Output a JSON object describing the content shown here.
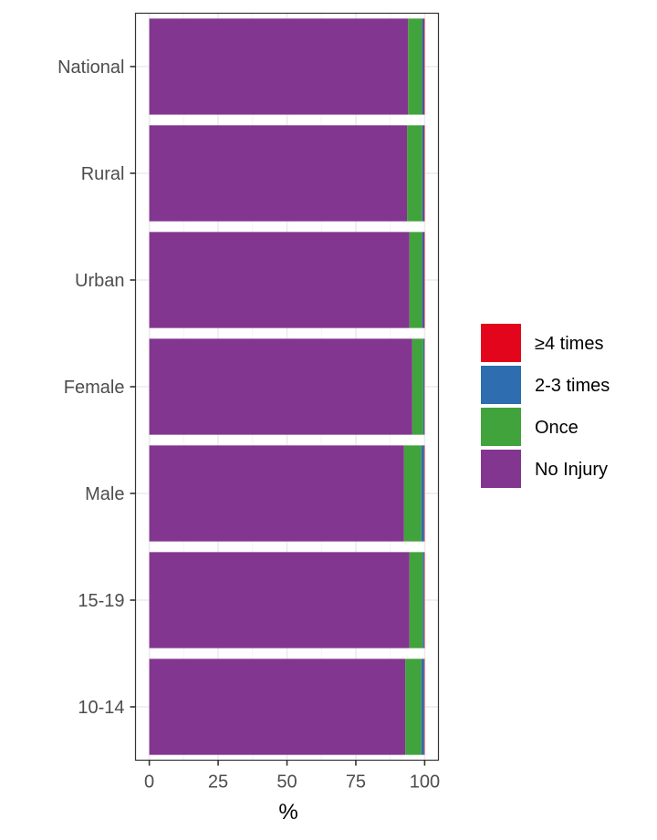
{
  "chart_data": {
    "type": "bar",
    "orientation": "horizontal",
    "stacked": true,
    "categories": [
      "National",
      "Rural",
      "Urban",
      "Female",
      "Male",
      "15-19",
      "10-14"
    ],
    "xlabel": "%",
    "ylabel": "",
    "xlim": [
      0,
      100
    ],
    "xticks": [
      0,
      25,
      50,
      75,
      100
    ],
    "grid": true,
    "legend_position": "right",
    "series": [
      {
        "name": "No Injury",
        "color": "#83368F",
        "values": [
          94,
          93.6,
          94.5,
          95.5,
          92.5,
          94.5,
          93
        ]
      },
      {
        "name": "Once",
        "color": "#41A33B",
        "values": [
          5.0,
          5.5,
          4.5,
          4.0,
          6.3,
          4.8,
          5.8
        ]
      },
      {
        "name": "2-3 times",
        "color": "#2E6DAF",
        "values": [
          0.7,
          0.6,
          0.7,
          0.4,
          1.0,
          0.5,
          1.0
        ]
      },
      {
        "name": "≥4 times",
        "color": "#E3051B",
        "values": [
          0.3,
          0.3,
          0.3,
          0.1,
          0.2,
          0.2,
          0.2
        ]
      }
    ],
    "legend_order": [
      "≥4 times",
      "2-3 times",
      "Once",
      "No Injury"
    ]
  },
  "colors": {
    "panel_border": "#333333",
    "grid_major": "#ebebeb",
    "grid_minor": "#f4f4f4",
    "tick": "#333333"
  }
}
